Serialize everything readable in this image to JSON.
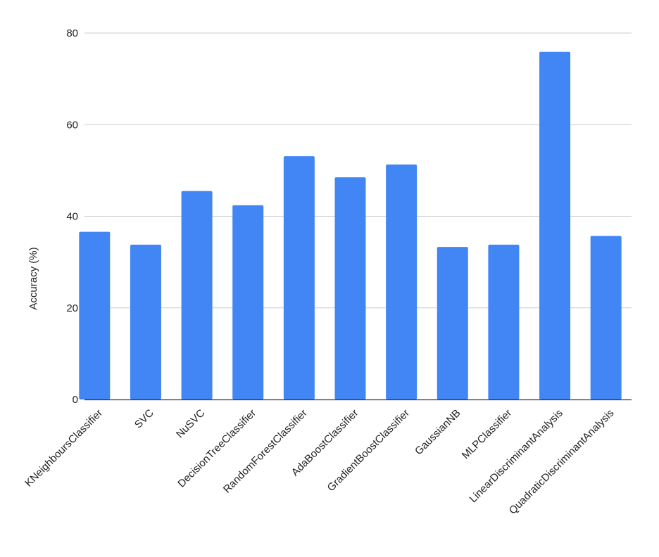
{
  "chart_data": {
    "type": "bar",
    "title": "",
    "xlabel": "",
    "ylabel": "Accuracy (%)",
    "ylim": [
      0,
      80
    ],
    "yticks": [
      0,
      20,
      40,
      60,
      80
    ],
    "grid": true,
    "legend": "none",
    "bar_color": "#4285f4",
    "categories": [
      "KNeighboursClassifier",
      "SVC",
      "NuSVC",
      "DecisionTreeClassifier",
      "RandomForestClassifier",
      "AdaBoostClassifier",
      "GradientBoostClassifier",
      "GaussianNB",
      "MLPClassifier",
      "LinearDiscriminantAnalysis",
      "QuadraticDiscriminantAnalysis"
    ],
    "values": [
      36.6,
      33.8,
      45.5,
      42.4,
      53.1,
      48.5,
      51.3,
      33.3,
      33.8,
      75.9,
      35.7
    ]
  }
}
